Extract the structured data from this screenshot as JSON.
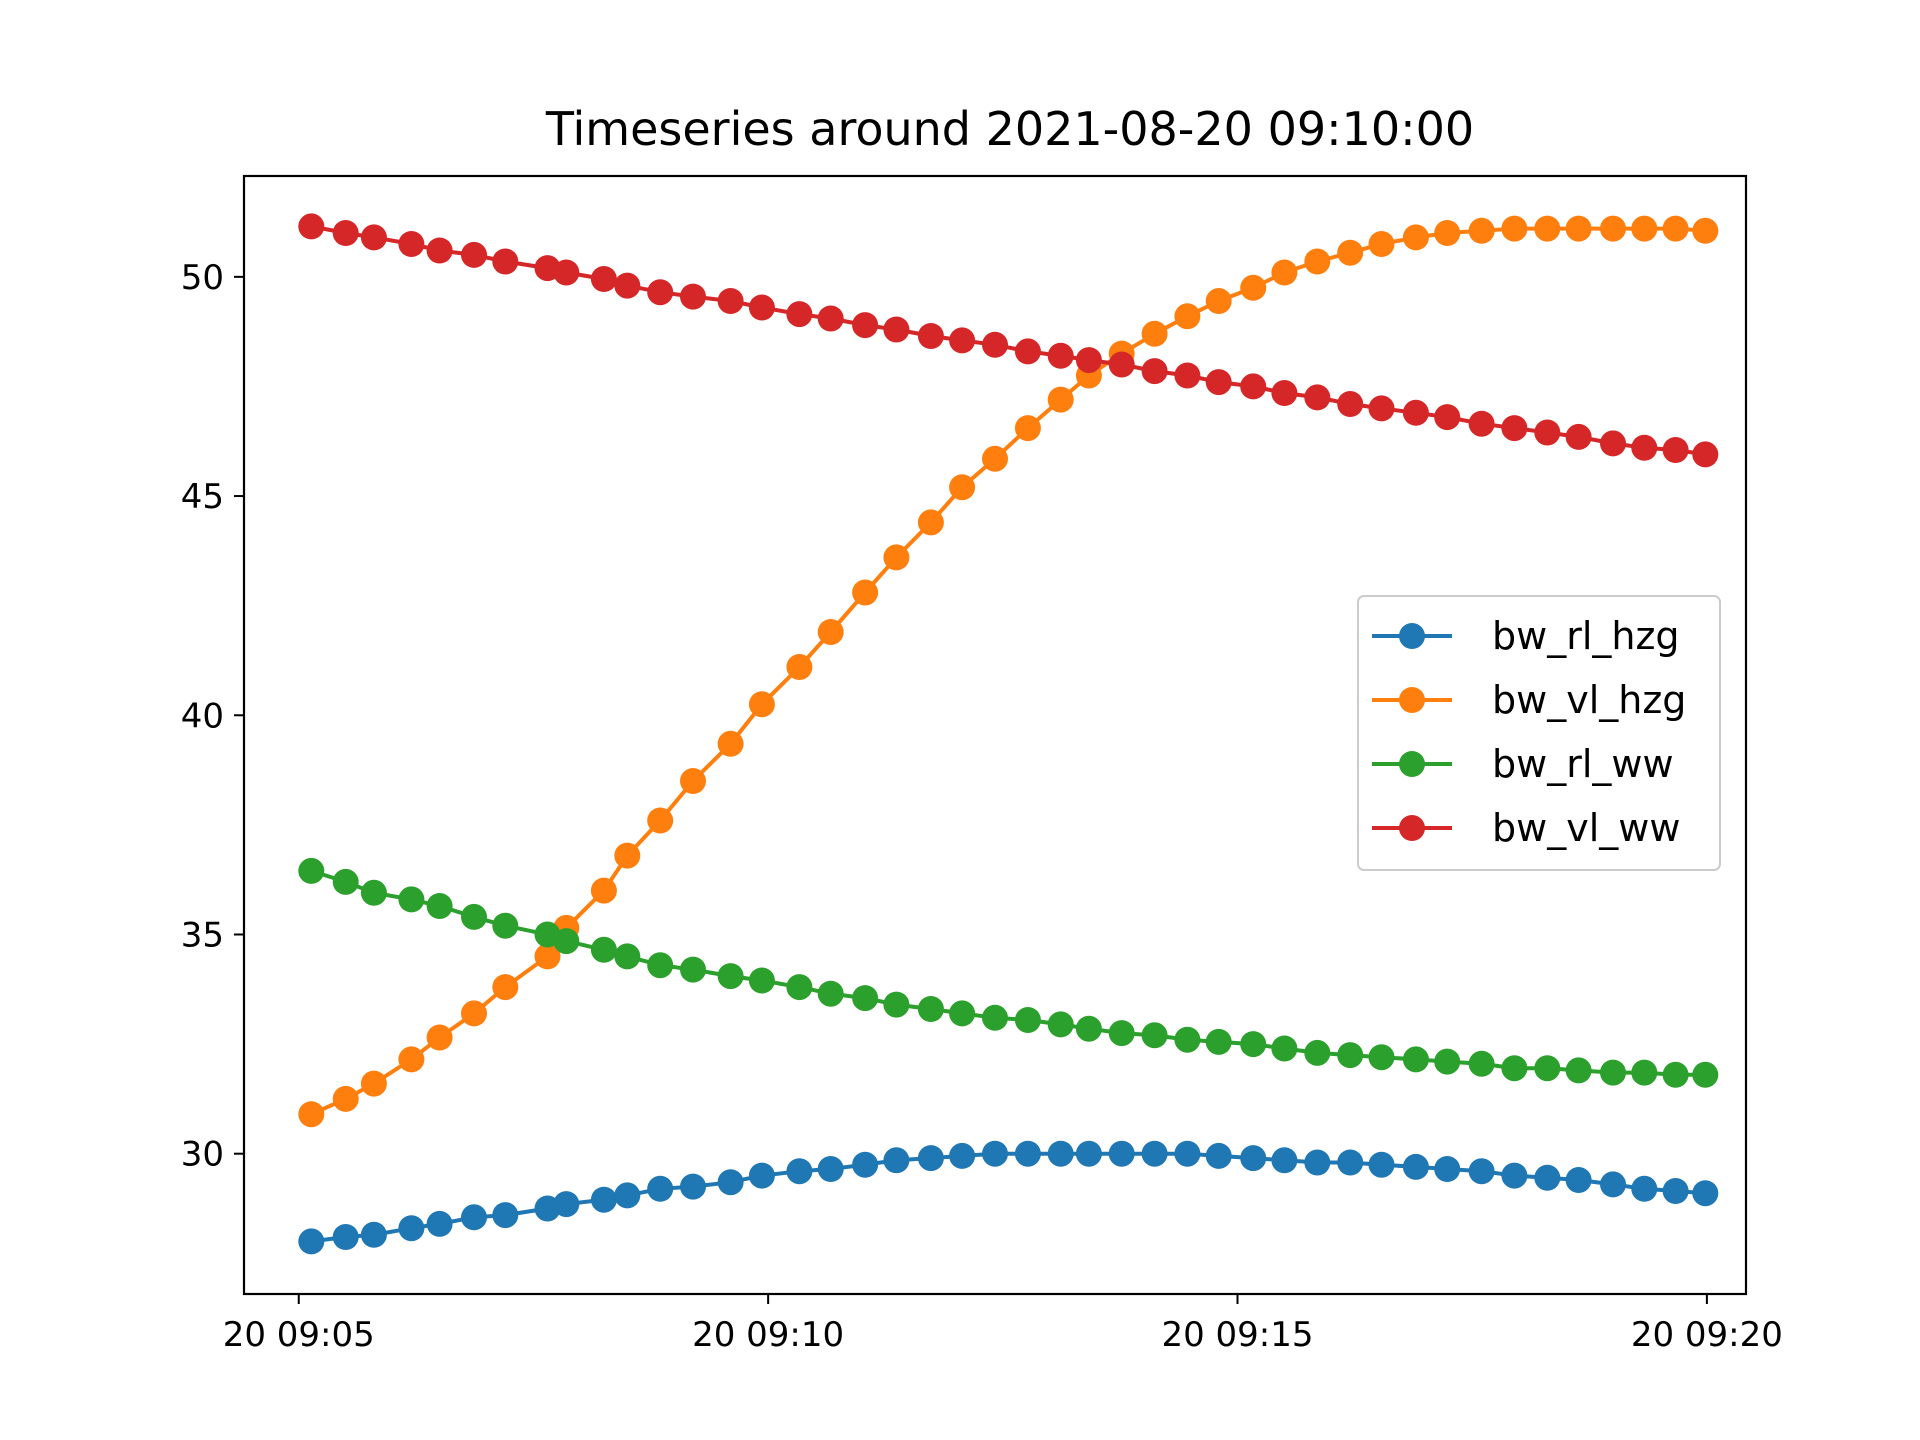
{
  "chart_data": {
    "type": "line",
    "title": "Timeseries around 2021-08-20 09:10:00",
    "xlabel": "",
    "ylabel": "",
    "x_ticks": [
      {
        "time": "09:05",
        "label": "20 09:05"
      },
      {
        "time": "09:10",
        "label": "20 09:10"
      },
      {
        "time": "09:15",
        "label": "20 09:15"
      },
      {
        "time": "09:20",
        "label": "20 09:20"
      }
    ],
    "y_ticks": [
      30,
      35,
      40,
      45,
      50
    ],
    "xlim": [
      "09:04:25",
      "09:20:25"
    ],
    "ylim": [
      26.8,
      52.3
    ],
    "grid": false,
    "legend_position": "center-right",
    "x": [
      "09:05:08",
      "09:05:30",
      "09:05:48",
      "09:06:12",
      "09:06:30",
      "09:06:52",
      "09:07:12",
      "09:07:39",
      "09:07:51",
      "09:08:15",
      "09:08:30",
      "09:08:51",
      "09:09:12",
      "09:09:36",
      "09:09:56",
      "09:10:20",
      "09:10:40",
      "09:11:02",
      "09:11:22",
      "09:11:44",
      "09:12:04",
      "09:12:25",
      "09:12:46",
      "09:13:07",
      "09:13:25",
      "09:13:46",
      "09:14:07",
      "09:14:28",
      "09:14:48",
      "09:15:10",
      "09:15:30",
      "09:15:51",
      "09:16:12",
      "09:16:32",
      "09:16:54",
      "09:17:14",
      "09:17:36",
      "09:17:57",
      "09:18:18",
      "09:18:38",
      "09:19:00",
      "09:19:20",
      "09:19:40",
      "09:19:59"
    ],
    "series": [
      {
        "name": "bw_rl_hzg",
        "color": "#1f77b4",
        "values": [
          28.0,
          28.1,
          28.15,
          28.3,
          28.4,
          28.55,
          28.6,
          28.75,
          28.85,
          28.95,
          29.05,
          29.2,
          29.25,
          29.35,
          29.5,
          29.6,
          29.65,
          29.75,
          29.85,
          29.9,
          29.95,
          30.0,
          30.0,
          30.0,
          30.0,
          30.0,
          30.0,
          30.0,
          29.95,
          29.9,
          29.85,
          29.8,
          29.8,
          29.75,
          29.7,
          29.65,
          29.6,
          29.5,
          29.45,
          29.4,
          29.3,
          29.2,
          29.15,
          29.1
        ]
      },
      {
        "name": "bw_vl_hzg",
        "color": "#ff7f0e",
        "values": [
          30.9,
          31.25,
          31.6,
          32.15,
          32.65,
          33.2,
          33.8,
          34.5,
          35.15,
          36.0,
          36.8,
          37.6,
          38.5,
          39.35,
          40.25,
          41.1,
          41.9,
          42.8,
          43.6,
          44.4,
          45.2,
          45.85,
          46.55,
          47.2,
          47.75,
          48.25,
          48.7,
          49.1,
          49.45,
          49.75,
          50.1,
          50.35,
          50.55,
          50.75,
          50.9,
          51.0,
          51.05,
          51.1,
          51.1,
          51.1,
          51.1,
          51.1,
          51.1,
          51.05
        ]
      },
      {
        "name": "bw_rl_ww",
        "color": "#2ca02c",
        "values": [
          36.45,
          36.2,
          35.95,
          35.8,
          35.65,
          35.4,
          35.2,
          35.0,
          34.85,
          34.65,
          34.5,
          34.3,
          34.2,
          34.05,
          33.95,
          33.8,
          33.65,
          33.55,
          33.4,
          33.3,
          33.2,
          33.1,
          33.05,
          32.95,
          32.85,
          32.75,
          32.7,
          32.6,
          32.55,
          32.5,
          32.4,
          32.3,
          32.25,
          32.2,
          32.15,
          32.1,
          32.05,
          31.95,
          31.95,
          31.9,
          31.85,
          31.85,
          31.8,
          31.8
        ]
      },
      {
        "name": "bw_vl_ww",
        "color": "#d62728",
        "values": [
          51.15,
          51.0,
          50.9,
          50.75,
          50.6,
          50.5,
          50.35,
          50.2,
          50.1,
          49.95,
          49.8,
          49.65,
          49.55,
          49.45,
          49.3,
          49.15,
          49.05,
          48.9,
          48.8,
          48.65,
          48.55,
          48.45,
          48.3,
          48.2,
          48.1,
          48.0,
          47.85,
          47.75,
          47.6,
          47.5,
          47.35,
          47.25,
          47.1,
          47.0,
          46.9,
          46.8,
          46.65,
          46.55,
          46.45,
          46.35,
          46.2,
          46.1,
          46.05,
          45.95
        ]
      }
    ]
  }
}
